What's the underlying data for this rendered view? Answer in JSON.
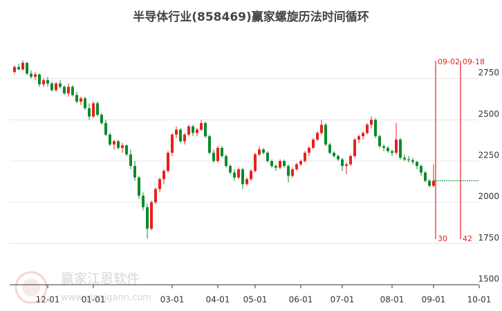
{
  "chart_data": {
    "type": "candlestick",
    "title": "半导体行业(858469)赢家螺旋历法时间循环",
    "watermark": {
      "brand": "赢家江恩软件",
      "site": "www.yingjgann.com"
    },
    "up_color": "#e8211c",
    "down_color": "#0c8a2c",
    "grid": true,
    "ylim": [
      1500,
      2870
    ],
    "yticks": [
      1500,
      1750,
      2000,
      2250,
      2500,
      2750
    ],
    "categories": [
      null,
      null,
      null,
      null,
      null,
      null,
      null,
      null,
      "12-01",
      null,
      null,
      null,
      null,
      null,
      null,
      null,
      null,
      null,
      null,
      "01-01",
      null,
      null,
      null,
      null,
      null,
      null,
      null,
      null,
      null,
      null,
      null,
      null,
      null,
      null,
      null,
      null,
      null,
      null,
      "03-01",
      null,
      null,
      null,
      null,
      null,
      null,
      null,
      null,
      null,
      null,
      "04-01",
      null,
      null,
      null,
      null,
      null,
      null,
      null,
      null,
      "05-01",
      null,
      null,
      null,
      null,
      null,
      null,
      null,
      null,
      null,
      null,
      "06-01",
      null,
      null,
      null,
      null,
      null,
      null,
      null,
      null,
      null,
      "07-01",
      null,
      null,
      null,
      null,
      null,
      null,
      null,
      null,
      null,
      null,
      null,
      "08-01",
      null,
      null,
      null,
      null,
      null,
      null,
      null,
      null,
      null,
      "09-01",
      "09-02",
      null,
      null,
      null,
      null,
      null,
      "09-18",
      null,
      null,
      null,
      "10-01"
    ],
    "xticks": [
      "12-01",
      "01-01",
      "03-01",
      "04-01",
      "05-01",
      "06-01",
      "07-01",
      "08-01",
      "09-01",
      "10-01"
    ],
    "candles": [
      [
        2790,
        2830,
        2780,
        2820
      ],
      [
        2820,
        2840,
        2800,
        2805
      ],
      [
        2805,
        2860,
        2800,
        2845
      ],
      [
        2845,
        2850,
        2770,
        2780
      ],
      [
        2780,
        2800,
        2750,
        2760
      ],
      [
        2760,
        2790,
        2740,
        2775
      ],
      [
        2775,
        2780,
        2700,
        2715
      ],
      [
        2715,
        2750,
        2700,
        2740
      ],
      [
        2740,
        2760,
        2700,
        2720
      ],
      [
        2720,
        2730,
        2670,
        2680
      ],
      [
        2680,
        2730,
        2670,
        2720
      ],
      [
        2720,
        2740,
        2690,
        2700
      ],
      [
        2700,
        2710,
        2650,
        2660
      ],
      [
        2660,
        2720,
        2640,
        2700
      ],
      [
        2700,
        2710,
        2640,
        2650
      ],
      [
        2650,
        2670,
        2600,
        2610
      ],
      [
        2610,
        2640,
        2590,
        2630
      ],
      [
        2630,
        2640,
        2560,
        2570
      ],
      [
        2570,
        2600,
        2500,
        2520
      ],
      [
        2520,
        2610,
        2510,
        2600
      ],
      [
        2600,
        2610,
        2520,
        2530
      ],
      [
        2530,
        2540,
        2470,
        2480
      ],
      [
        2480,
        2500,
        2400,
        2410
      ],
      [
        2410,
        2420,
        2340,
        2350
      ],
      [
        2350,
        2380,
        2320,
        2370
      ],
      [
        2370,
        2380,
        2320,
        2330
      ],
      [
        2330,
        2360,
        2300,
        2345
      ],
      [
        2345,
        2350,
        2280,
        2290
      ],
      [
        2290,
        2320,
        2200,
        2220
      ],
      [
        2220,
        2250,
        2130,
        2150
      ],
      [
        2150,
        2160,
        2020,
        2040
      ],
      [
        2040,
        2060,
        1950,
        1970
      ],
      [
        1970,
        1990,
        1780,
        1840
      ],
      [
        1840,
        2010,
        1830,
        2000
      ],
      [
        2000,
        2090,
        1990,
        2080
      ],
      [
        2080,
        2150,
        2060,
        2140
      ],
      [
        2140,
        2200,
        2110,
        2190
      ],
      [
        2190,
        2310,
        2180,
        2300
      ],
      [
        2300,
        2420,
        2280,
        2410
      ],
      [
        2410,
        2460,
        2390,
        2440
      ],
      [
        2440,
        2450,
        2360,
        2370
      ],
      [
        2370,
        2420,
        2350,
        2410
      ],
      [
        2410,
        2470,
        2400,
        2460
      ],
      [
        2460,
        2470,
        2400,
        2420
      ],
      [
        2420,
        2450,
        2400,
        2440
      ],
      [
        2440,
        2500,
        2430,
        2480
      ],
      [
        2480,
        2490,
        2390,
        2400
      ],
      [
        2400,
        2410,
        2290,
        2300
      ],
      [
        2300,
        2320,
        2240,
        2250
      ],
      [
        2250,
        2340,
        2240,
        2330
      ],
      [
        2330,
        2340,
        2270,
        2280
      ],
      [
        2280,
        2290,
        2210,
        2220
      ],
      [
        2220,
        2230,
        2170,
        2180
      ],
      [
        2180,
        2200,
        2130,
        2150
      ],
      [
        2150,
        2210,
        2140,
        2200
      ],
      [
        2200,
        2210,
        2080,
        2110
      ],
      [
        2110,
        2150,
        2100,
        2140
      ],
      [
        2140,
        2200,
        2130,
        2190
      ],
      [
        2190,
        2300,
        2180,
        2290
      ],
      [
        2290,
        2340,
        2280,
        2320
      ],
      [
        2320,
        2330,
        2290,
        2300
      ],
      [
        2300,
        2310,
        2240,
        2250
      ],
      [
        2250,
        2260,
        2210,
        2220
      ],
      [
        2220,
        2230,
        2190,
        2210
      ],
      [
        2210,
        2260,
        2200,
        2250
      ],
      [
        2250,
        2260,
        2210,
        2220
      ],
      [
        2220,
        2230,
        2120,
        2160
      ],
      [
        2160,
        2210,
        2150,
        2200
      ],
      [
        2200,
        2240,
        2190,
        2230
      ],
      [
        2230,
        2260,
        2220,
        2250
      ],
      [
        2250,
        2310,
        2240,
        2300
      ],
      [
        2300,
        2340,
        2280,
        2330
      ],
      [
        2330,
        2390,
        2320,
        2380
      ],
      [
        2380,
        2430,
        2370,
        2420
      ],
      [
        2420,
        2500,
        2410,
        2470
      ],
      [
        2470,
        2480,
        2340,
        2350
      ],
      [
        2350,
        2360,
        2290,
        2300
      ],
      [
        2300,
        2310,
        2270,
        2280
      ],
      [
        2280,
        2290,
        2250,
        2260
      ],
      [
        2260,
        2270,
        2190,
        2220
      ],
      [
        2220,
        2240,
        2170,
        2230
      ],
      [
        2230,
        2290,
        2220,
        2280
      ],
      [
        2280,
        2390,
        2270,
        2380
      ],
      [
        2380,
        2410,
        2360,
        2400
      ],
      [
        2400,
        2430,
        2380,
        2420
      ],
      [
        2420,
        2480,
        2410,
        2470
      ],
      [
        2470,
        2520,
        2450,
        2500
      ],
      [
        2500,
        2510,
        2390,
        2400
      ],
      [
        2400,
        2410,
        2330,
        2340
      ],
      [
        2340,
        2350,
        2310,
        2330
      ],
      [
        2330,
        2340,
        2300,
        2310
      ],
      [
        2310,
        2320,
        2280,
        2300
      ],
      [
        2300,
        2480,
        2290,
        2380
      ],
      [
        2380,
        2390,
        2260,
        2270
      ],
      [
        2270,
        2290,
        2250,
        2260
      ],
      [
        2260,
        2280,
        2240,
        2255
      ],
      [
        2255,
        2270,
        2230,
        2245
      ],
      [
        2245,
        2250,
        2200,
        2220
      ],
      [
        2220,
        2230,
        2160,
        2180
      ],
      [
        2180,
        2190,
        2120,
        2130
      ],
      [
        2130,
        2140,
        2090,
        2100
      ],
      [
        2100,
        2230,
        2090,
        2130
      ],
      null,
      null,
      null,
      null,
      null,
      null,
      null,
      null,
      null,
      null,
      null
    ],
    "vlines": [
      {
        "date": "09-02",
        "count": 30
      },
      {
        "date": "09-18",
        "count": 42
      }
    ],
    "vline_color": "#e8211c",
    "last_line_color": "#0c8a2c"
  }
}
